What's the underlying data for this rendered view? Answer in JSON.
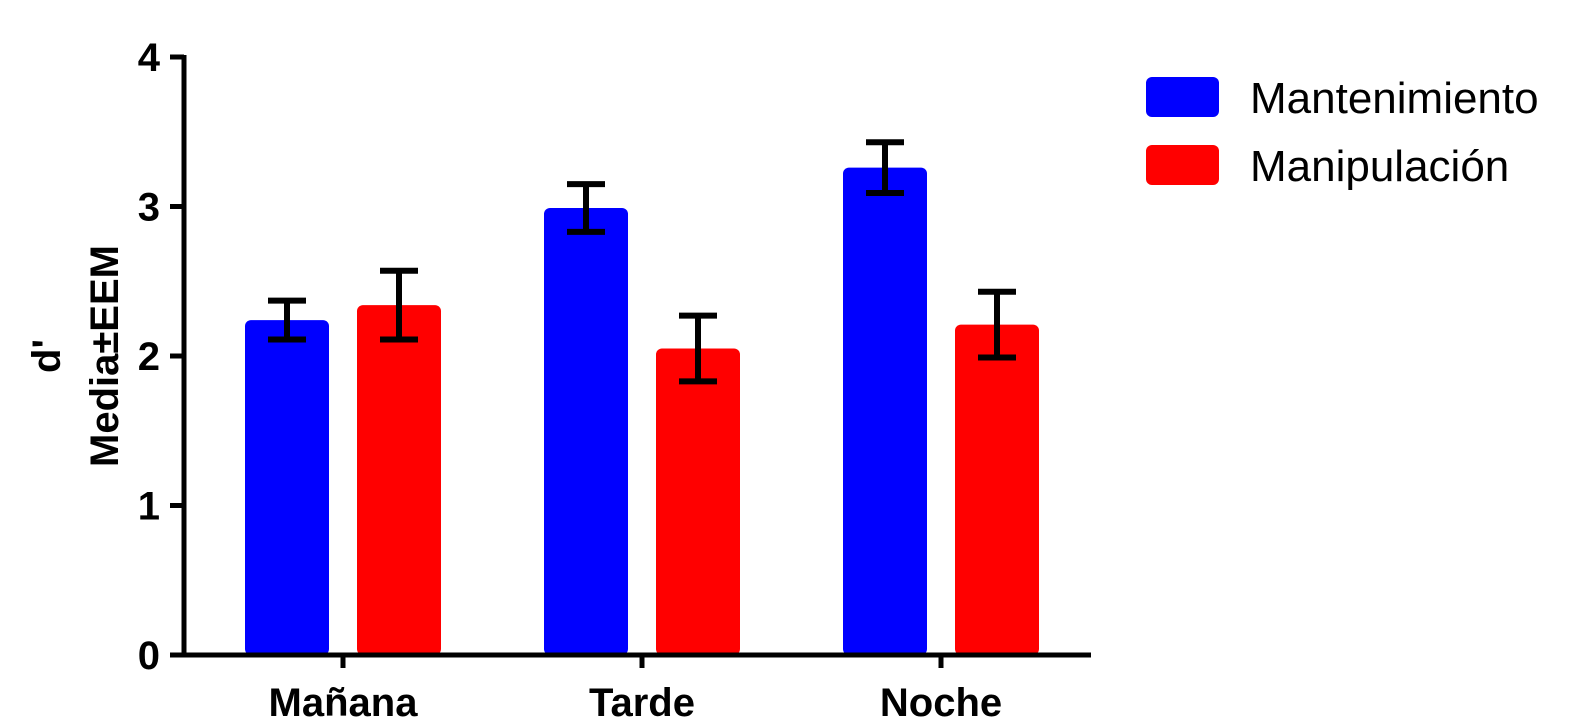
{
  "chart_data": {
    "type": "bar",
    "categories": [
      "Mañana",
      "Tarde",
      "Noche"
    ],
    "series": [
      {
        "name": "Mantenimiento",
        "color": "#0000ff",
        "values": [
          2.24,
          2.99,
          3.26
        ],
        "errors": [
          0.13,
          0.16,
          0.17
        ]
      },
      {
        "name": "Manipulación",
        "color": "#ff0000",
        "values": [
          2.34,
          2.05,
          2.21
        ],
        "errors": [
          0.23,
          0.22,
          0.22
        ]
      }
    ],
    "ylabel_lines": [
      "d'",
      "Media±EEM"
    ],
    "ylim": [
      0,
      4
    ],
    "yticks": [
      0,
      1,
      2,
      3,
      4
    ],
    "ytick_labels": [
      "0",
      "1",
      "2",
      "3",
      "4"
    ],
    "grid": false,
    "legend_position": "top-right"
  }
}
